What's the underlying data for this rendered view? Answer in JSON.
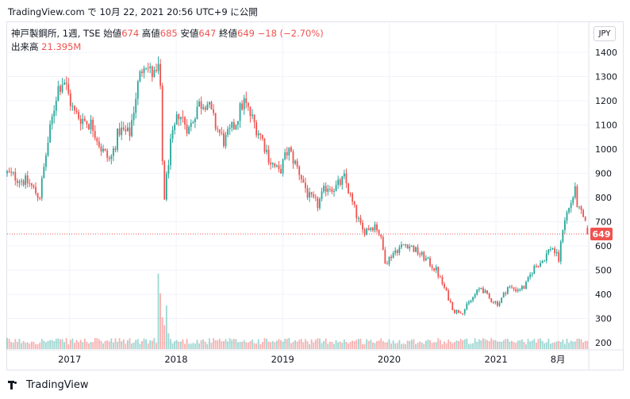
{
  "header": {
    "publish_line": "TradingView.com で 10月 22, 2021 20:56 UTC+9 に公開"
  },
  "legend": {
    "symbol": "神戸製鋼所, 1週, TSE",
    "open_label": "始値",
    "open_value": "674",
    "high_label": "高値",
    "high_value": "685",
    "low_label": "安値",
    "low_value": "647",
    "close_label": "終値",
    "close_value": "649",
    "change": "−18 (−2.70%)",
    "volume_label": "出来高",
    "volume_value": "21.395M"
  },
  "currency_button": "JPY",
  "price_tag": "649",
  "footer": {
    "brand": "TradingView"
  },
  "colors": {
    "up": "#26a69a",
    "down": "#ef5350",
    "grid": "#f0f3fa",
    "last_line": "#ef5350"
  },
  "chart_data": {
    "type": "candlestick",
    "interval": "1 week",
    "y_ticks": [
      200,
      300,
      400,
      500,
      600,
      700,
      800,
      900,
      1000,
      1100,
      1200,
      1300,
      1400
    ],
    "ylim": [
      160,
      1440
    ],
    "x_ticks": [
      {
        "label": "2017",
        "date": "2017-01-01"
      },
      {
        "label": "2018",
        "date": "2018-01-01"
      },
      {
        "label": "2019",
        "date": "2019-01-01"
      },
      {
        "label": "2020",
        "date": "2020-01-01"
      },
      {
        "label": "2021",
        "date": "2021-01-01"
      },
      {
        "label": "8月",
        "date": "2021-08-01"
      }
    ],
    "xlim": [
      "2016-06-01",
      "2021-11-12"
    ],
    "last_close": 649,
    "anchors": [
      [
        "2016-06-01",
        900
      ],
      [
        "2016-08-15",
        860
      ],
      [
        "2016-09-20",
        800
      ],
      [
        "2016-10-15",
        1000
      ],
      [
        "2016-11-20",
        1250
      ],
      [
        "2016-12-12",
        1290
      ],
      [
        "2017-01-15",
        1150
      ],
      [
        "2017-02-20",
        1120
      ],
      [
        "2017-03-20",
        1100
      ],
      [
        "2017-04-20",
        1000
      ],
      [
        "2017-05-20",
        950
      ],
      [
        "2017-06-20",
        1080
      ],
      [
        "2017-07-25",
        1060
      ],
      [
        "2017-08-20",
        1250
      ],
      [
        "2017-09-15",
        1380
      ],
      [
        "2017-10-01",
        1320
      ],
      [
        "2017-10-25",
        1300
      ],
      [
        "2017-11-05",
        1360
      ],
      [
        "2017-11-12",
        1050
      ],
      [
        "2017-11-20",
        780
      ],
      [
        "2017-12-10",
        1000
      ],
      [
        "2018-01-10",
        1150
      ],
      [
        "2018-02-15",
        1080
      ],
      [
        "2018-03-15",
        1180
      ],
      [
        "2018-04-15",
        1200
      ],
      [
        "2018-05-15",
        1100
      ],
      [
        "2018-06-15",
        1030
      ],
      [
        "2018-07-20",
        1100
      ],
      [
        "2018-08-20",
        1200
      ],
      [
        "2018-09-20",
        1120
      ],
      [
        "2018-10-20",
        1050
      ],
      [
        "2018-11-20",
        950
      ],
      [
        "2018-12-20",
        900
      ],
      [
        "2019-01-20",
        1000
      ],
      [
        "2019-03-01",
        900
      ],
      [
        "2019-04-01",
        800
      ],
      [
        "2019-05-01",
        770
      ],
      [
        "2019-06-01",
        850
      ],
      [
        "2019-07-01",
        840
      ],
      [
        "2019-08-01",
        880
      ],
      [
        "2019-09-01",
        760
      ],
      [
        "2019-10-01",
        660
      ],
      [
        "2019-11-15",
        690
      ],
      [
        "2019-12-01",
        640
      ],
      [
        "2019-12-20",
        530
      ],
      [
        "2020-01-20",
        580
      ],
      [
        "2020-03-01",
        610
      ],
      [
        "2020-04-01",
        580
      ],
      [
        "2020-05-01",
        550
      ],
      [
        "2020-06-10",
        500
      ],
      [
        "2020-07-10",
        420
      ],
      [
        "2020-08-10",
        330
      ],
      [
        "2020-09-10",
        330
      ],
      [
        "2020-10-10",
        380
      ],
      [
        "2020-11-10",
        430
      ],
      [
        "2020-12-10",
        380
      ],
      [
        "2021-01-10",
        360
      ],
      [
        "2021-02-10",
        430
      ],
      [
        "2021-03-10",
        420
      ],
      [
        "2021-04-10",
        430
      ],
      [
        "2021-05-10",
        510
      ],
      [
        "2021-06-10",
        540
      ],
      [
        "2021-07-10",
        600
      ],
      [
        "2021-08-05",
        540
      ],
      [
        "2021-08-20",
        700
      ],
      [
        "2021-09-10",
        760
      ],
      [
        "2021-09-28",
        830
      ],
      [
        "2021-10-10",
        750
      ],
      [
        "2021-10-25",
        720
      ],
      [
        "2021-11-12",
        649
      ]
    ]
  }
}
